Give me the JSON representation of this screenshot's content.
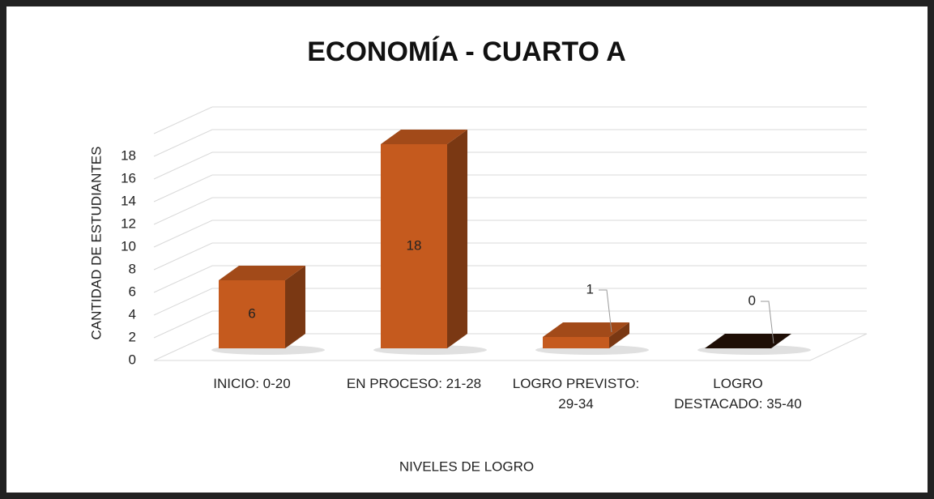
{
  "chart_data": {
    "type": "bar3d",
    "title": "ECONOMÍA - CUARTO A",
    "categories": [
      "INICIO: 0-20",
      "EN PROCESO: 21-28",
      "LOGRO PREVISTO: 29-34",
      "LOGRO DESTACADO: 35-40"
    ],
    "values": [
      6,
      18,
      1,
      0
    ],
    "color": "#c55a1e",
    "ylim": [
      0,
      20
    ],
    "yticks": [
      0,
      2,
      4,
      6,
      8,
      10,
      12,
      14,
      16,
      18
    ],
    "grid": true,
    "x_label": "NIVELES DE LOGRO",
    "y_label": "CANTIDAD DE ESTUDIANTES"
  }
}
